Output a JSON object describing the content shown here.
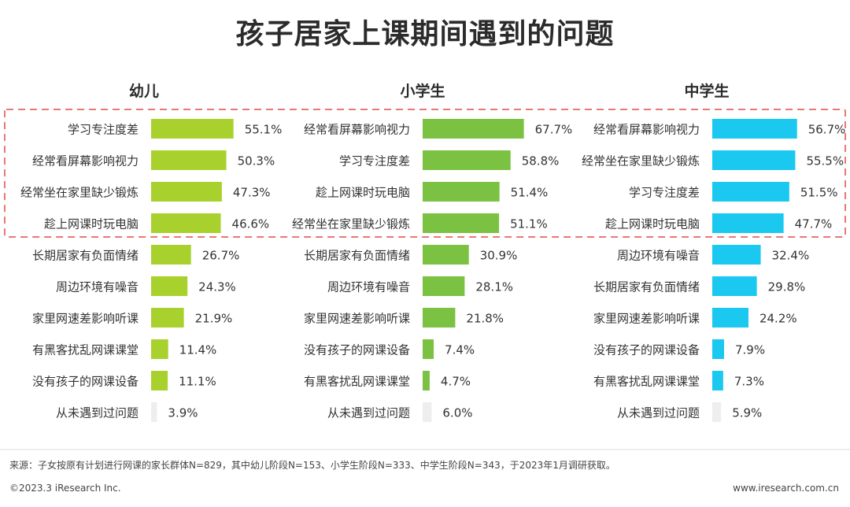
{
  "title": "孩子居家上课期间遇到的问题",
  "chart_data": [
    {
      "type": "bar",
      "title": "幼儿",
      "color": "#a9d12e",
      "categories": [
        "学习专注度差",
        "经常看屏幕影响视力",
        "经常坐在家里缺少锻炼",
        "趁上网课时玩电脑",
        "长期居家有负面情绪",
        "周边环境有噪音",
        "家里网速差影响听课",
        "有黑客扰乱网课课堂",
        "没有孩子的网课设备",
        "从未遇到过问题"
      ],
      "values": [
        55.1,
        50.3,
        47.3,
        46.6,
        26.7,
        24.3,
        21.9,
        11.4,
        11.1,
        3.9
      ],
      "labels": [
        "55.1%",
        "50.3%",
        "47.3%",
        "46.6%",
        "26.7%",
        "24.3%",
        "21.9%",
        "11.4%",
        "11.1%",
        "3.9%"
      ]
    },
    {
      "type": "bar",
      "title": "小学生",
      "color": "#7cc242",
      "categories": [
        "经常看屏幕影响视力",
        "学习专注度差",
        "趁上网课时玩电脑",
        "经常坐在家里缺少锻炼",
        "长期居家有负面情绪",
        "周边环境有噪音",
        "家里网速差影响听课",
        "没有孩子的网课设备",
        "有黑客扰乱网课课堂",
        "从未遇到过问题"
      ],
      "values": [
        67.7,
        58.8,
        51.4,
        51.1,
        30.9,
        28.1,
        21.8,
        7.4,
        4.7,
        6.0
      ],
      "labels": [
        "67.7%",
        "58.8%",
        "51.4%",
        "51.1%",
        "30.9%",
        "28.1%",
        "21.8%",
        "7.4%",
        "4.7%",
        "6.0%"
      ]
    },
    {
      "type": "bar",
      "title": "中学生",
      "color": "#1bc8f0",
      "categories": [
        "经常看屏幕影响视力",
        "经常坐在家里缺少锻炼",
        "学习专注度差",
        "趁上网课时玩电脑",
        "周边环境有噪音",
        "长期居家有负面情绪",
        "家里网速差影响听课",
        "没有孩子的网课设备",
        "有黑客扰乱网课课堂",
        "从未遇到过问题"
      ],
      "values": [
        56.7,
        55.5,
        51.5,
        47.7,
        32.4,
        29.8,
        24.2,
        7.9,
        7.3,
        5.9
      ],
      "labels": [
        "56.7%",
        "55.5%",
        "51.5%",
        "47.7%",
        "32.4%",
        "29.8%",
        "24.2%",
        "7.9%",
        "7.3%",
        "5.9%"
      ]
    }
  ],
  "neutral_color": "#eeeeee",
  "highlight_color": "#e87878",
  "source": "来源：子女按原有计划进行网课的家长群体N=829，其中幼儿阶段N=153、小学生阶段N=333、中学生阶段N=343，于2023年1月调研获取。",
  "footer": {
    "copyright": "©2023.3 iResearch Inc.",
    "website": "www.iresearch.com.cn"
  }
}
